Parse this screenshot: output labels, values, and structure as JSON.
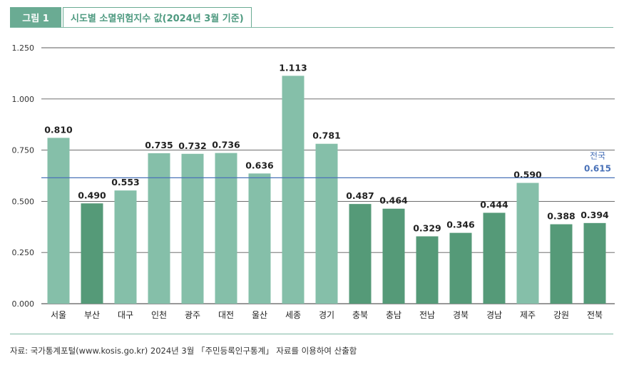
{
  "figure": {
    "label": "그림 1",
    "title": "시도별 소멸위험지수 값(2024년 3월 기준)",
    "source": "자료: 국가통계포털(www.kosis.go.kr) 2024년 3월 「주민등록인구통계」 자료를 이용하여 산출함"
  },
  "colors": {
    "light_bar": "#85bfa9",
    "dark_bar": "#559a78",
    "reference_line": "#4a72b8",
    "grid": "#5a5a5a",
    "frame": "#7fb8a4"
  },
  "chart_data": {
    "type": "bar",
    "title": "시도별 소멸위험지수 값(2024년 3월 기준)",
    "xlabel": "",
    "ylabel": "",
    "ylim": [
      0,
      1.25
    ],
    "yticks": [
      "0.000",
      "0.250",
      "0.500",
      "0.750",
      "1.000",
      "1.250"
    ],
    "grid": true,
    "categories": [
      "서울",
      "부산",
      "대구",
      "인천",
      "광주",
      "대전",
      "울산",
      "세종",
      "경기",
      "충북",
      "충남",
      "전남",
      "경북",
      "경남",
      "제주",
      "강원",
      "전북"
    ],
    "values": [
      0.81,
      0.49,
      0.553,
      0.735,
      0.732,
      0.736,
      0.636,
      1.113,
      0.781,
      0.487,
      0.464,
      0.329,
      0.346,
      0.444,
      0.59,
      0.388,
      0.394
    ],
    "value_labels": [
      "0.810",
      "0.490",
      "0.553",
      "0.735",
      "0.732",
      "0.736",
      "0.636",
      "1.113",
      "0.781",
      "0.487",
      "0.464",
      "0.329",
      "0.346",
      "0.444",
      "0.590",
      "0.388",
      "0.394"
    ],
    "bar_shades": [
      "light",
      "dark",
      "light",
      "light",
      "light",
      "light",
      "light",
      "light",
      "light",
      "dark",
      "dark",
      "dark",
      "dark",
      "dark",
      "light",
      "dark",
      "dark"
    ],
    "reference_line": {
      "label": "전국",
      "value": 0.615,
      "value_label": "0.615"
    }
  }
}
